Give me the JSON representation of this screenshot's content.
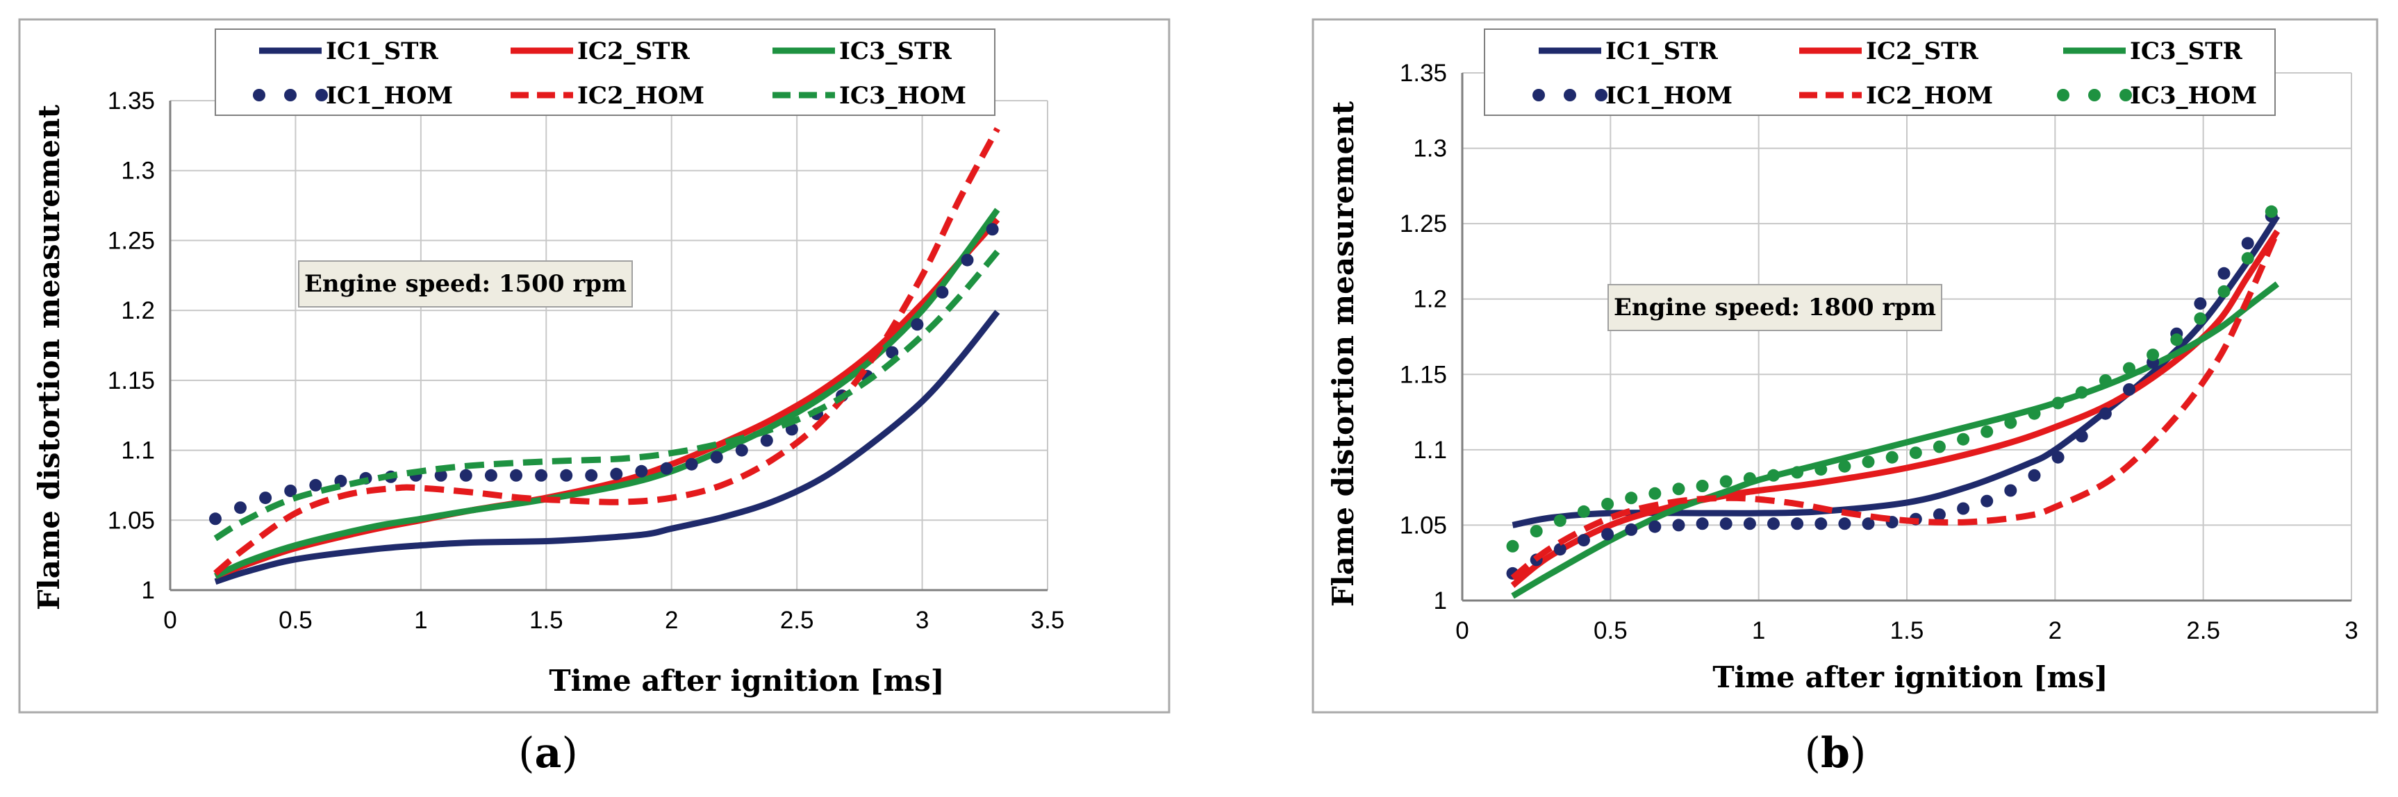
{
  "colors": {
    "ic1": "#1f2a6b",
    "ic2": "#e41a1c",
    "ic3": "#1e9241",
    "grid": "#c8c8c8",
    "annot_bg": "#eeece1"
  },
  "chart_data": [
    {
      "id": "a",
      "type": "line",
      "caption_open": "(",
      "caption_letter": "a",
      "caption_close": ")",
      "annotation": "Engine speed: 1500 rpm",
      "xlabel": "Time after ignition  [ms]",
      "ylabel": "Flame distortion measurement",
      "xlim": [
        0,
        3.5
      ],
      "ylim": [
        1,
        1.35
      ],
      "xticks": [
        "0",
        "0.5",
        "1",
        "1.5",
        "2",
        "2.5",
        "3",
        "3.5"
      ],
      "yticks": [
        "1",
        "1.05",
        "1.1",
        "1.15",
        "1.2",
        "1.25",
        "1.3",
        "1.35"
      ],
      "series": [
        {
          "name": "IC1_STR",
          "color_key": "ic1",
          "style": "solid",
          "x": [
            0.18,
            0.3,
            0.5,
            0.8,
            1,
            1.2,
            1.5,
            1.7,
            1.9,
            2,
            2.2,
            2.4,
            2.6,
            2.8,
            3,
            3.15,
            3.3
          ],
          "y": [
            1.006,
            1.013,
            1.022,
            1.029,
            1.032,
            1.034,
            1.035,
            1.037,
            1.04,
            1.044,
            1.052,
            1.063,
            1.08,
            1.105,
            1.135,
            1.165,
            1.199
          ]
        },
        {
          "name": "IC2_STR",
          "color_key": "ic2",
          "style": "solid",
          "x": [
            0.18,
            0.3,
            0.5,
            0.8,
            1,
            1.2,
            1.5,
            1.8,
            2,
            2.2,
            2.4,
            2.6,
            2.8,
            3,
            3.15,
            3.3
          ],
          "y": [
            1.01,
            1.018,
            1.03,
            1.043,
            1.05,
            1.057,
            1.066,
            1.078,
            1.09,
            1.105,
            1.122,
            1.143,
            1.17,
            1.205,
            1.235,
            1.265
          ]
        },
        {
          "name": "IC3_STR",
          "color_key": "ic3",
          "style": "solid",
          "x": [
            0.18,
            0.3,
            0.5,
            0.8,
            1,
            1.2,
            1.5,
            1.8,
            2,
            2.2,
            2.4,
            2.6,
            2.8,
            3,
            3.15,
            3.3
          ],
          "y": [
            1.01,
            1.02,
            1.032,
            1.045,
            1.051,
            1.057,
            1.065,
            1.075,
            1.085,
            1.1,
            1.117,
            1.138,
            1.165,
            1.2,
            1.235,
            1.272
          ]
        },
        {
          "name": "IC1_HOM",
          "color_key": "ic1",
          "style": "dots",
          "x": [
            0.18,
            0.28,
            0.38,
            0.48,
            0.58,
            0.68,
            0.78,
            0.88,
            0.98,
            1.08,
            1.18,
            1.28,
            1.38,
            1.48,
            1.58,
            1.68,
            1.78,
            1.88,
            1.98,
            2.08,
            2.18,
            2.28,
            2.38,
            2.48,
            2.58,
            2.68,
            2.78,
            2.88,
            2.98,
            3.08,
            3.18,
            3.28
          ],
          "y": [
            1.051,
            1.059,
            1.066,
            1.071,
            1.075,
            1.078,
            1.08,
            1.081,
            1.082,
            1.082,
            1.082,
            1.082,
            1.082,
            1.082,
            1.082,
            1.082,
            1.083,
            1.085,
            1.087,
            1.09,
            1.095,
            1.1,
            1.107,
            1.115,
            1.126,
            1.139,
            1.153,
            1.17,
            1.19,
            1.213,
            1.236,
            1.258
          ]
        },
        {
          "name": "IC2_HOM",
          "color_key": "ic2",
          "style": "dashed",
          "x": [
            0.18,
            0.3,
            0.5,
            0.7,
            0.9,
            1,
            1.2,
            1.4,
            1.6,
            1.8,
            2,
            2.2,
            2.4,
            2.6,
            2.8,
            3,
            3.15,
            3.3
          ],
          "y": [
            1.012,
            1.03,
            1.055,
            1.068,
            1.073,
            1.073,
            1.07,
            1.066,
            1.064,
            1.063,
            1.066,
            1.075,
            1.093,
            1.121,
            1.165,
            1.225,
            1.28,
            1.33
          ]
        },
        {
          "name": "IC3_HOM",
          "color_key": "ic3",
          "style": "dashed",
          "x": [
            0.18,
            0.3,
            0.5,
            0.8,
            1,
            1.2,
            1.5,
            1.8,
            2,
            2.2,
            2.4,
            2.6,
            2.8,
            3,
            3.15,
            3.3
          ],
          "y": [
            1.037,
            1.05,
            1.066,
            1.079,
            1.085,
            1.089,
            1.092,
            1.094,
            1.098,
            1.105,
            1.115,
            1.13,
            1.152,
            1.182,
            1.21,
            1.242
          ]
        }
      ]
    },
    {
      "id": "b",
      "type": "line",
      "caption_open": "(",
      "caption_letter": "b",
      "caption_close": ")",
      "annotation": "Engine speed: 1800 rpm",
      "xlabel": "Time after ignition  [ms]",
      "ylabel": "Flame distortion measurement",
      "xlim": [
        0,
        3
      ],
      "ylim": [
        1,
        1.35
      ],
      "xticks": [
        "0",
        "0.5",
        "1",
        "1.5",
        "2",
        "2.5",
        "3"
      ],
      "yticks": [
        "1",
        "1.05",
        "1.1",
        "1.15",
        "1.2",
        "1.25",
        "1.3",
        "1.35"
      ],
      "series": [
        {
          "name": "IC1_STR",
          "color_key": "ic1",
          "style": "solid",
          "x": [
            0.17,
            0.3,
            0.5,
            0.8,
            1,
            1.2,
            1.5,
            1.7,
            1.9,
            2,
            2.2,
            2.35,
            2.5,
            2.65,
            2.75
          ],
          "y": [
            1.05,
            1.055,
            1.058,
            1.058,
            1.058,
            1.059,
            1.065,
            1.075,
            1.09,
            1.1,
            1.13,
            1.155,
            1.185,
            1.225,
            1.255
          ]
        },
        {
          "name": "IC2_STR",
          "color_key": "ic2",
          "style": "solid",
          "x": [
            0.17,
            0.3,
            0.5,
            0.7,
            0.9,
            1,
            1.2,
            1.5,
            1.8,
            2,
            2.2,
            2.4,
            2.55,
            2.65,
            2.75
          ],
          "y": [
            1.01,
            1.03,
            1.05,
            1.062,
            1.07,
            1.073,
            1.078,
            1.088,
            1.102,
            1.115,
            1.132,
            1.158,
            1.185,
            1.215,
            1.245
          ]
        },
        {
          "name": "IC3_STR",
          "color_key": "ic3",
          "style": "solid",
          "x": [
            0.17,
            0.3,
            0.5,
            0.7,
            0.9,
            1,
            1.2,
            1.5,
            1.8,
            2,
            2.2,
            2.4,
            2.55,
            2.65,
            2.75
          ],
          "y": [
            1.003,
            1.018,
            1.04,
            1.059,
            1.073,
            1.08,
            1.09,
            1.105,
            1.12,
            1.131,
            1.145,
            1.163,
            1.18,
            1.195,
            1.21
          ]
        },
        {
          "name": "IC1_HOM",
          "color_key": "ic1",
          "style": "dots",
          "x": [
            0.17,
            0.25,
            0.33,
            0.41,
            0.49,
            0.57,
            0.65,
            0.73,
            0.81,
            0.89,
            0.97,
            1.05,
            1.13,
            1.21,
            1.29,
            1.37,
            1.45,
            1.53,
            1.61,
            1.69,
            1.77,
            1.85,
            1.93,
            2.01,
            2.09,
            2.17,
            2.25,
            2.33,
            2.41,
            2.49,
            2.57,
            2.65,
            2.73
          ],
          "y": [
            1.018,
            1.027,
            1.034,
            1.04,
            1.044,
            1.047,
            1.049,
            1.05,
            1.051,
            1.051,
            1.051,
            1.051,
            1.051,
            1.051,
            1.051,
            1.051,
            1.052,
            1.054,
            1.057,
            1.061,
            1.066,
            1.073,
            1.083,
            1.095,
            1.109,
            1.124,
            1.14,
            1.158,
            1.177,
            1.197,
            1.217,
            1.237,
            1.255
          ]
        },
        {
          "name": "IC2_HOM",
          "color_key": "ic2",
          "style": "dashed",
          "x": [
            0.17,
            0.3,
            0.5,
            0.7,
            0.9,
            1.1,
            1.3,
            1.5,
            1.7,
            1.9,
            2,
            2.2,
            2.4,
            2.55,
            2.65,
            2.75
          ],
          "y": [
            1.015,
            1.035,
            1.055,
            1.065,
            1.068,
            1.065,
            1.058,
            1.053,
            1.052,
            1.056,
            1.062,
            1.082,
            1.12,
            1.16,
            1.2,
            1.245
          ]
        },
        {
          "name": "IC3_HOM",
          "color_key": "ic3",
          "style": "dots",
          "x": [
            0.17,
            0.25,
            0.33,
            0.41,
            0.49,
            0.57,
            0.65,
            0.73,
            0.81,
            0.89,
            0.97,
            1.05,
            1.13,
            1.21,
            1.29,
            1.37,
            1.45,
            1.53,
            1.61,
            1.69,
            1.77,
            1.85,
            1.93,
            2.01,
            2.09,
            2.17,
            2.25,
            2.33,
            2.41,
            2.49,
            2.57,
            2.65,
            2.73
          ],
          "y": [
            1.036,
            1.046,
            1.053,
            1.059,
            1.064,
            1.068,
            1.071,
            1.074,
            1.076,
            1.079,
            1.081,
            1.083,
            1.085,
            1.087,
            1.089,
            1.092,
            1.095,
            1.098,
            1.102,
            1.107,
            1.112,
            1.118,
            1.124,
            1.131,
            1.138,
            1.146,
            1.154,
            1.163,
            1.173,
            1.187,
            1.205,
            1.227,
            1.258
          ]
        }
      ]
    }
  ]
}
